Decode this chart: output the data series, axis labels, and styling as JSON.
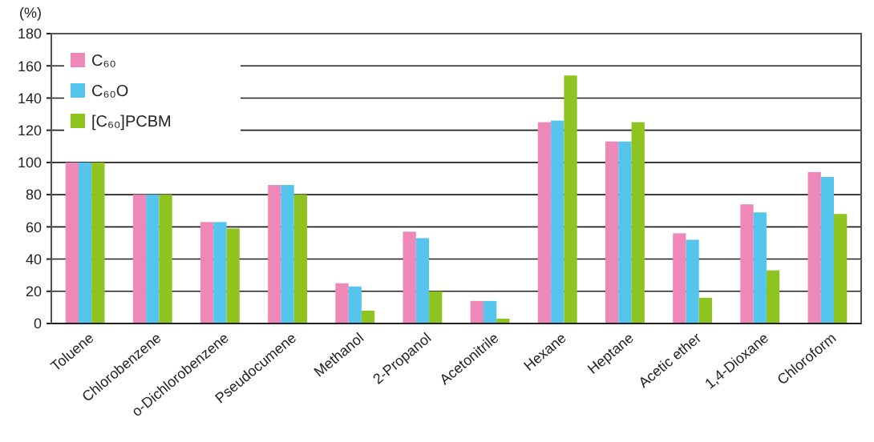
{
  "chart_data": {
    "type": "bar",
    "ylabel": "(%)",
    "categories": [
      "Toluene",
      "Chlorobenzene",
      "o-Dichlorobenzene",
      "Pseudocumene",
      "Methanol",
      "2-Propanol",
      "Acetonitrile",
      "Hexane",
      "Heptane",
      "Acetic ether",
      "1,4-Dioxane",
      "Chloroform"
    ],
    "series": [
      {
        "name": "C₆₀",
        "color": "#ee88b8",
        "values": [
          100,
          80,
          63,
          86,
          25,
          57,
          14,
          125,
          113,
          56,
          74,
          94
        ]
      },
      {
        "name": "C₆₀O",
        "color": "#55c5ee",
        "values": [
          100,
          80,
          63,
          86,
          23,
          53,
          14,
          126,
          113,
          52,
          69,
          91
        ]
      },
      {
        "name": "[C₆₀]PCBM",
        "color": "#8fc31f",
        "values": [
          100,
          80,
          59,
          80,
          8,
          20,
          3,
          154,
          125,
          16,
          33,
          68
        ]
      }
    ],
    "ylim": [
      0,
      180
    ],
    "yticks": [
      0,
      20,
      40,
      60,
      80,
      100,
      120,
      140,
      160,
      180
    ],
    "grid": "y",
    "legend": "top left"
  }
}
